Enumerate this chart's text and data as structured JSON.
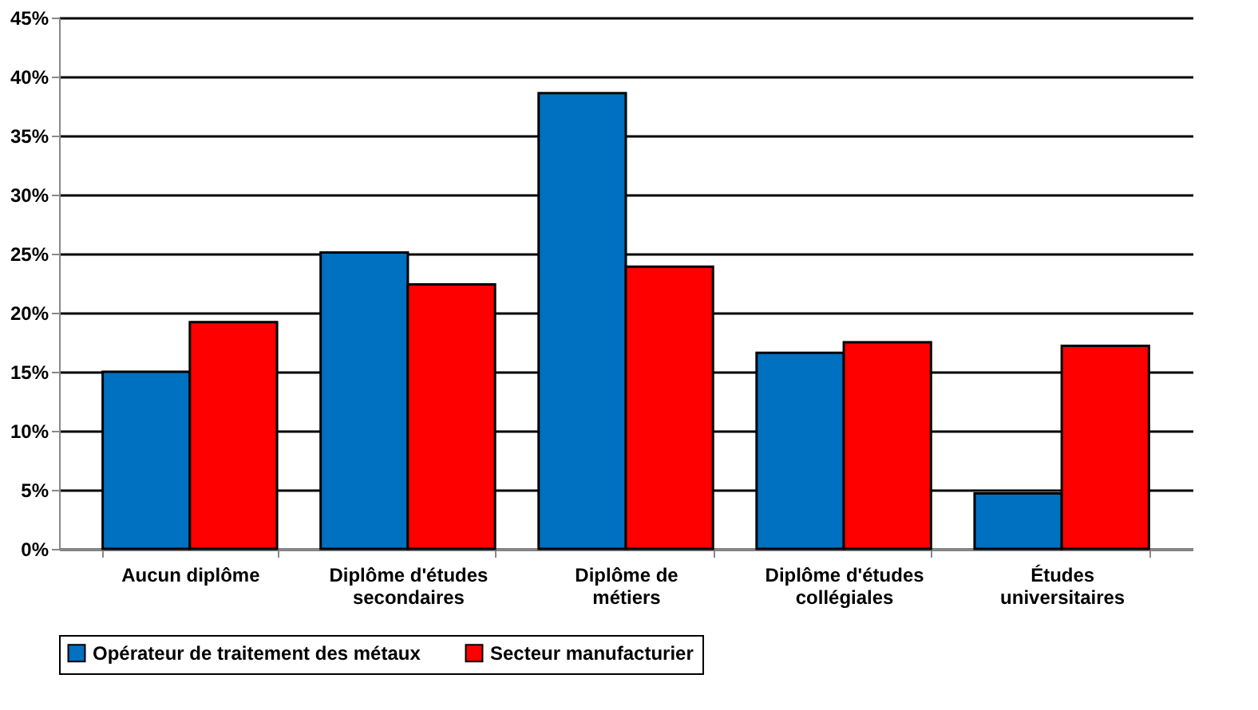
{
  "chart_data": {
    "type": "bar",
    "categories": [
      "Aucun diplôme",
      "Diplôme d'études secondaires",
      "Diplôme de métiers",
      "Diplôme d'études collégiales",
      "Études universitaires"
    ],
    "series": [
      {
        "name": "Opérateur de traitement des métaux",
        "color": "#0070c0",
        "values": [
          15.0,
          25.1,
          38.6,
          16.6,
          4.7
        ]
      },
      {
        "name": "Secteur manufacturier",
        "color": "#ff0000",
        "values": [
          19.2,
          22.4,
          23.9,
          17.5,
          17.2
        ]
      }
    ],
    "ylim": [
      0,
      45
    ],
    "yticks": [
      {
        "value": 0,
        "label": "0%"
      },
      {
        "value": 5,
        "label": "5%"
      },
      {
        "value": 10,
        "label": "10%"
      },
      {
        "value": 15,
        "label": "15%"
      },
      {
        "value": 20,
        "label": "20%"
      },
      {
        "value": 25,
        "label": "25%"
      },
      {
        "value": 30,
        "label": "30%"
      },
      {
        "value": 35,
        "label": "35%"
      },
      {
        "value": 40,
        "label": "40%"
      },
      {
        "value": 45,
        "label": "45%"
      }
    ],
    "grid": "y",
    "legend": "bottom"
  }
}
